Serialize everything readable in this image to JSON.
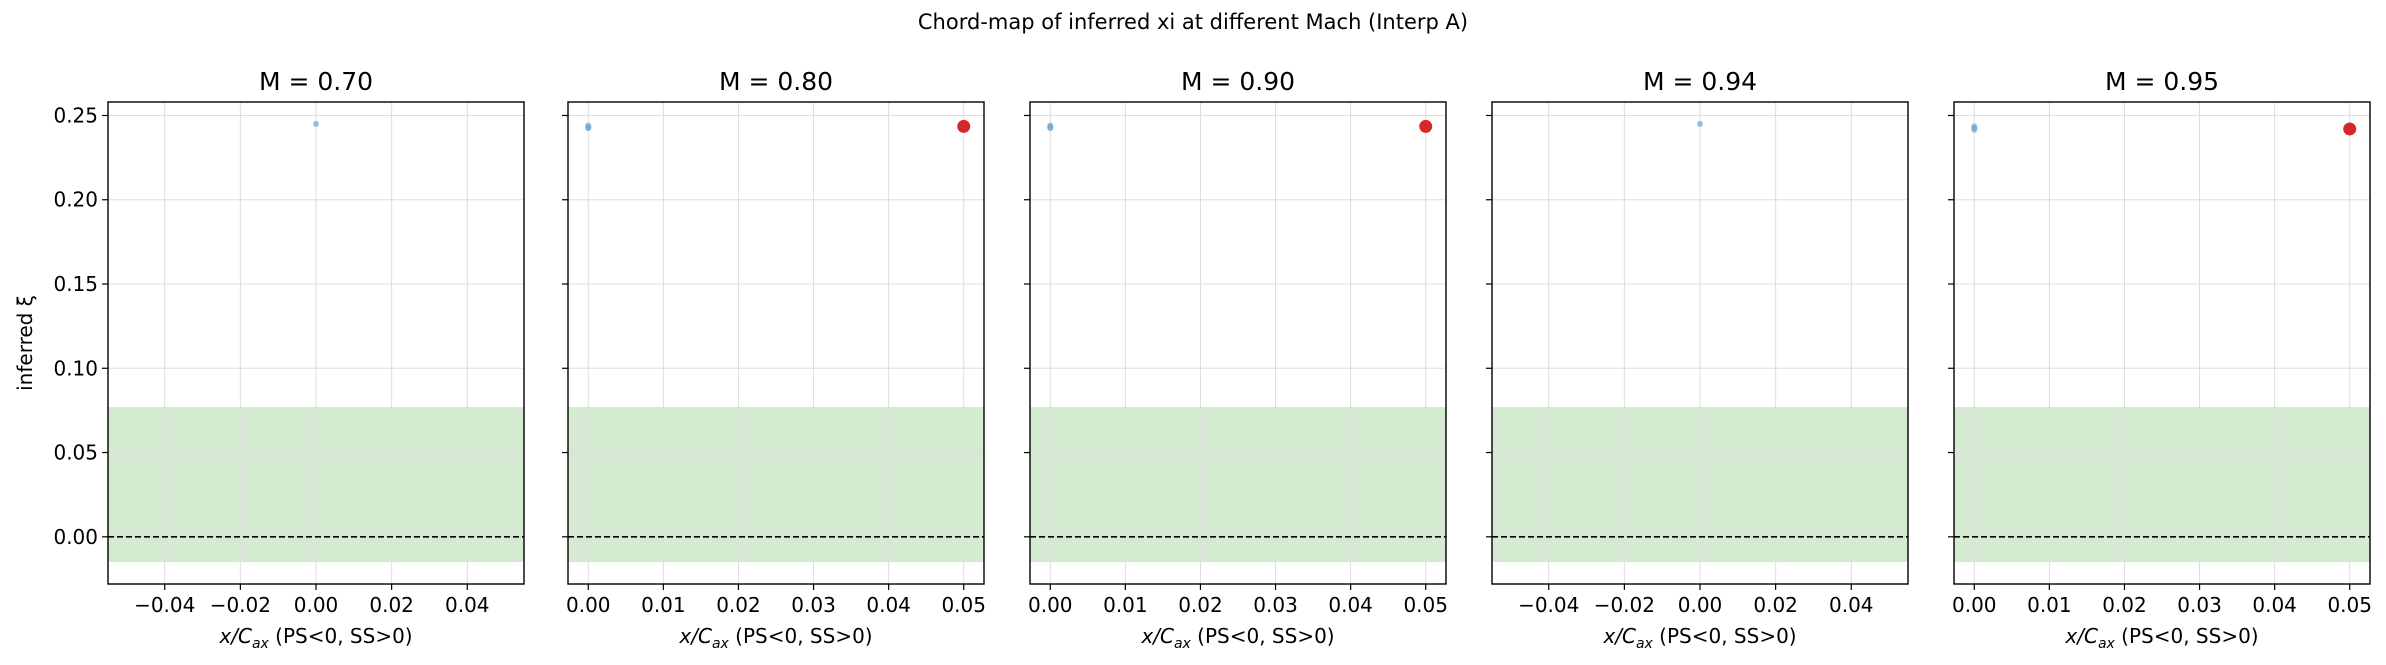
{
  "figure": {
    "title": "Chord-map of inferred xi at different Mach (Interp A)"
  },
  "colors": {
    "band": "#d4ebd1",
    "point_small": "#7aa7cf",
    "point_large": "#d62728",
    "grid": "#dddddd"
  },
  "chart_data": [
    {
      "type": "scatter",
      "title": "M = 0.70",
      "xlabel_main": "x/C",
      "xlabel_sub": "ax",
      "xlabel_tail": " (PS<0, SS>0)",
      "ylabel": "inferred ξ",
      "xlim": [
        -0.055,
        0.055
      ],
      "ylim": [
        -0.028,
        0.258
      ],
      "xticks": [
        -0.04,
        -0.02,
        0.0,
        0.02,
        0.04
      ],
      "xtick_labels": [
        "−0.04",
        "−0.02",
        "0.00",
        "0.02",
        "0.04"
      ],
      "yticks": [
        0.0,
        0.05,
        0.1,
        0.15,
        0.2,
        0.25
      ],
      "ytick_labels": [
        "0.00",
        "0.05",
        "0.10",
        "0.15",
        "0.20",
        "0.25"
      ],
      "show_ytick_labels": true,
      "grid": true,
      "band": [
        -0.015,
        0.077
      ],
      "reference_line_y": 0.0,
      "small_points": [
        [
          0.0,
          0.245
        ]
      ],
      "large_points": []
    },
    {
      "type": "scatter",
      "title": "M = 0.80",
      "xlabel_main": "x/C",
      "xlabel_sub": "ax",
      "xlabel_tail": " (PS<0, SS>0)",
      "xlim": [
        -0.0027,
        0.0527
      ],
      "ylim": [
        -0.028,
        0.258
      ],
      "xticks": [
        0.0,
        0.01,
        0.02,
        0.03,
        0.04,
        0.05
      ],
      "xtick_labels": [
        "0.00",
        "0.01",
        "0.02",
        "0.03",
        "0.04",
        "0.05"
      ],
      "yticks": [
        0.0,
        0.05,
        0.1,
        0.15,
        0.2,
        0.25
      ],
      "show_ytick_labels": false,
      "grid": true,
      "band": [
        -0.015,
        0.077
      ],
      "reference_line_y": 0.0,
      "small_points": [
        [
          0.0,
          0.244
        ],
        [
          0.0,
          0.2425
        ],
        [
          0.0,
          0.243
        ]
      ],
      "large_points": [
        [
          0.05,
          0.2435
        ]
      ]
    },
    {
      "type": "scatter",
      "title": "M = 0.90",
      "xlabel_main": "x/C",
      "xlabel_sub": "ax",
      "xlabel_tail": " (PS<0, SS>0)",
      "xlim": [
        -0.0027,
        0.0527
      ],
      "ylim": [
        -0.028,
        0.258
      ],
      "xticks": [
        0.0,
        0.01,
        0.02,
        0.03,
        0.04,
        0.05
      ],
      "xtick_labels": [
        "0.00",
        "0.01",
        "0.02",
        "0.03",
        "0.04",
        "0.05"
      ],
      "yticks": [
        0.0,
        0.05,
        0.1,
        0.15,
        0.2,
        0.25
      ],
      "show_ytick_labels": false,
      "grid": true,
      "band": [
        -0.015,
        0.077
      ],
      "reference_line_y": 0.0,
      "small_points": [
        [
          0.0,
          0.244
        ],
        [
          0.0,
          0.2425
        ],
        [
          0.0,
          0.243
        ]
      ],
      "large_points": [
        [
          0.05,
          0.2435
        ]
      ]
    },
    {
      "type": "scatter",
      "title": "M = 0.94",
      "xlabel_main": "x/C",
      "xlabel_sub": "ax",
      "xlabel_tail": " (PS<0, SS>0)",
      "xlim": [
        -0.055,
        0.055
      ],
      "ylim": [
        -0.028,
        0.258
      ],
      "xticks": [
        -0.04,
        -0.02,
        0.0,
        0.02,
        0.04
      ],
      "xtick_labels": [
        "−0.04",
        "−0.02",
        "0.00",
        "0.02",
        "0.04"
      ],
      "yticks": [
        0.0,
        0.05,
        0.1,
        0.15,
        0.2,
        0.25
      ],
      "show_ytick_labels": false,
      "grid": true,
      "band": [
        -0.015,
        0.077
      ],
      "reference_line_y": 0.0,
      "small_points": [
        [
          0.0,
          0.245
        ]
      ],
      "large_points": []
    },
    {
      "type": "scatter",
      "title": "M = 0.95",
      "xlabel_main": "x/C",
      "xlabel_sub": "ax",
      "xlabel_tail": " (PS<0, SS>0)",
      "xlim": [
        -0.0027,
        0.0527
      ],
      "ylim": [
        -0.028,
        0.258
      ],
      "xticks": [
        0.0,
        0.01,
        0.02,
        0.03,
        0.04,
        0.05
      ],
      "xtick_labels": [
        "0.00",
        "0.01",
        "0.02",
        "0.03",
        "0.04",
        "0.05"
      ],
      "yticks": [
        0.0,
        0.05,
        0.1,
        0.15,
        0.2,
        0.25
      ],
      "show_ytick_labels": false,
      "grid": true,
      "band": [
        -0.015,
        0.077
      ],
      "reference_line_y": 0.0,
      "small_points": [
        [
          0.0,
          0.2435
        ],
        [
          0.0,
          0.2415
        ],
        [
          0.0,
          0.2425
        ]
      ],
      "large_points": [
        [
          0.05,
          0.242
        ]
      ]
    }
  ]
}
